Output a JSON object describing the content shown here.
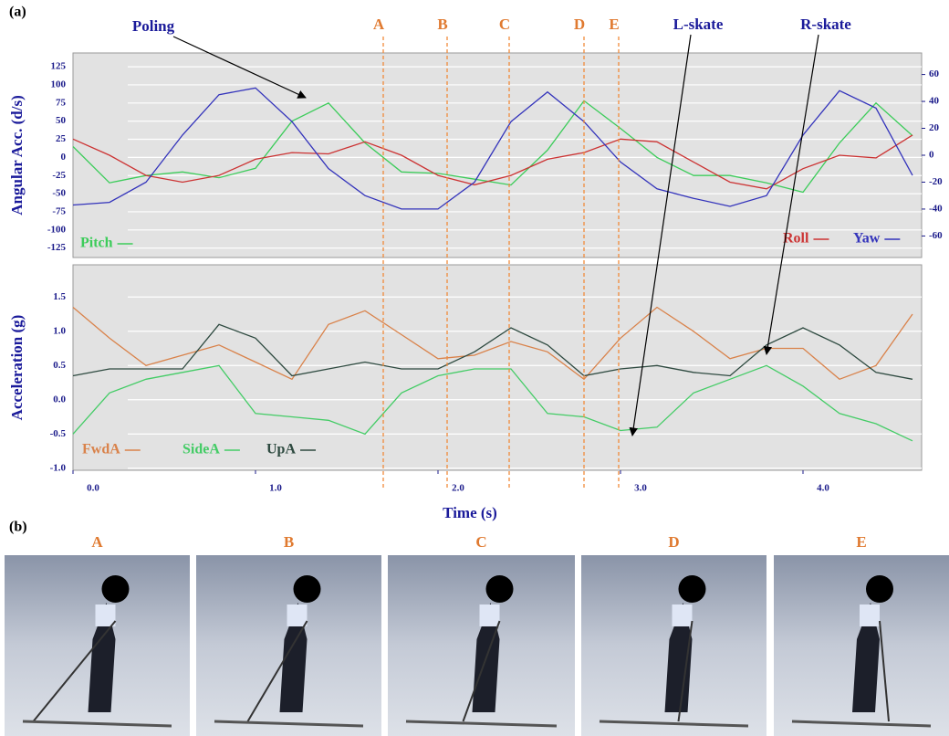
{
  "figure_labels": [
    "(a)",
    "(b)"
  ],
  "chart_data": [
    {
      "type": "line",
      "y_label": "Angular Acc. (d/s)",
      "x": [
        0,
        0.2,
        0.4,
        0.6,
        0.8,
        1.0,
        1.2,
        1.4,
        1.6,
        1.8,
        2.0,
        2.2,
        2.4,
        2.6,
        2.8,
        3.0,
        3.2,
        3.4,
        3.6,
        3.8,
        4.0,
        4.2,
        4.4,
        4.6
      ],
      "xlim": [
        0,
        4.65
      ],
      "ylim": [
        -138,
        144
      ],
      "yticks": [
        125,
        100,
        75,
        50,
        25,
        0,
        -25,
        -50,
        -75,
        -100,
        -125
      ],
      "y2lim": [
        -76,
        76
      ],
      "y2ticks": [
        60,
        40,
        20,
        0,
        -20,
        -40,
        -60
      ],
      "grid": true,
      "series": [
        {
          "name": "Pitch",
          "color": "#3ccc5a",
          "values": [
            15,
            -35,
            -25,
            -20,
            -28,
            -15,
            50,
            75,
            20,
            -20,
            -22,
            -30,
            -38,
            10,
            78,
            40,
            0,
            -25,
            -25,
            -35,
            -48,
            20,
            75,
            30
          ]
        },
        {
          "name": "Roll",
          "color": "#cc3333",
          "axis": "y2",
          "values": [
            12,
            0,
            -15,
            -20,
            -15,
            -3,
            2,
            1,
            10,
            0,
            -15,
            -22,
            -15,
            -3,
            2,
            12,
            10,
            -5,
            -20,
            -25,
            -10,
            0,
            -2,
            15
          ]
        },
        {
          "name": "Yaw",
          "color": "#3333bb",
          "axis": "y2",
          "values": [
            -37,
            -35,
            -20,
            15,
            45,
            50,
            25,
            -10,
            -30,
            -40,
            -40,
            -20,
            25,
            47,
            25,
            -5,
            -25,
            -32,
            -38,
            -30,
            15,
            48,
            35,
            -15
          ]
        }
      ],
      "events": [
        {
          "label": "A",
          "x": 1.7
        },
        {
          "label": "B",
          "x": 2.05
        },
        {
          "label": "C",
          "x": 2.39
        },
        {
          "label": "D",
          "x": 2.8
        },
        {
          "label": "E",
          "x": 2.99
        }
      ],
      "annotations": [
        "Poling",
        "L-skate",
        "R-skate"
      ]
    },
    {
      "type": "line",
      "y_label": "Acceleration (g)",
      "x_label": "Time (s)",
      "x": [
        0,
        0.2,
        0.4,
        0.6,
        0.8,
        1.0,
        1.2,
        1.4,
        1.6,
        1.8,
        2.0,
        2.2,
        2.4,
        2.6,
        2.8,
        3.0,
        3.2,
        3.4,
        3.6,
        3.8,
        4.0,
        4.2,
        4.4,
        4.6
      ],
      "xlim": [
        0,
        4.65
      ],
      "xticks": [
        {
          "value": 0,
          "label": "0.0"
        },
        {
          "value": 1,
          "label": "1.0"
        },
        {
          "value": 2,
          "label": "2.0"
        },
        {
          "value": 3,
          "label": "3.0"
        },
        {
          "value": 4,
          "label": "4.0"
        }
      ],
      "ylim": [
        -1.03,
        1.97
      ],
      "yticks": [
        1.5,
        {
          "value": 1,
          "label": "1.0"
        },
        0.5,
        {
          "value": 0,
          "label": "0.0"
        },
        -0.5,
        {
          "value": -1,
          "label": "-1.0"
        }
      ],
      "grid": true,
      "series": [
        {
          "name": "FwdA",
          "color": "#d9824a",
          "values": [
            1.35,
            0.9,
            0.5,
            0.65,
            0.8,
            0.55,
            0.3,
            1.1,
            1.3,
            0.95,
            0.6,
            0.65,
            0.85,
            0.7,
            0.3,
            0.9,
            1.35,
            1.0,
            0.6,
            0.75,
            0.75,
            0.3,
            0.5,
            1.25
          ]
        },
        {
          "name": "SideA",
          "color": "#44cc66",
          "values": [
            -0.5,
            0.1,
            0.3,
            0.4,
            0.5,
            -0.2,
            -0.25,
            -0.3,
            -0.5,
            0.1,
            0.35,
            0.45,
            0.45,
            -0.2,
            -0.25,
            -0.45,
            -0.4,
            0.1,
            0.3,
            0.5,
            0.2,
            -0.2,
            -0.35,
            -0.6
          ]
        },
        {
          "name": "UpA",
          "color": "#2e4a40",
          "values": [
            0.35,
            0.45,
            0.45,
            0.45,
            1.1,
            0.9,
            0.35,
            0.45,
            0.55,
            0.45,
            0.45,
            0.7,
            1.05,
            0.8,
            0.35,
            0.45,
            0.5,
            0.4,
            0.35,
            0.8,
            1.05,
            0.8,
            0.4,
            0.3
          ]
        }
      ]
    }
  ],
  "photos": [
    {
      "label": "A"
    },
    {
      "label": "B"
    },
    {
      "label": "C"
    },
    {
      "label": "D"
    },
    {
      "label": "E"
    }
  ]
}
